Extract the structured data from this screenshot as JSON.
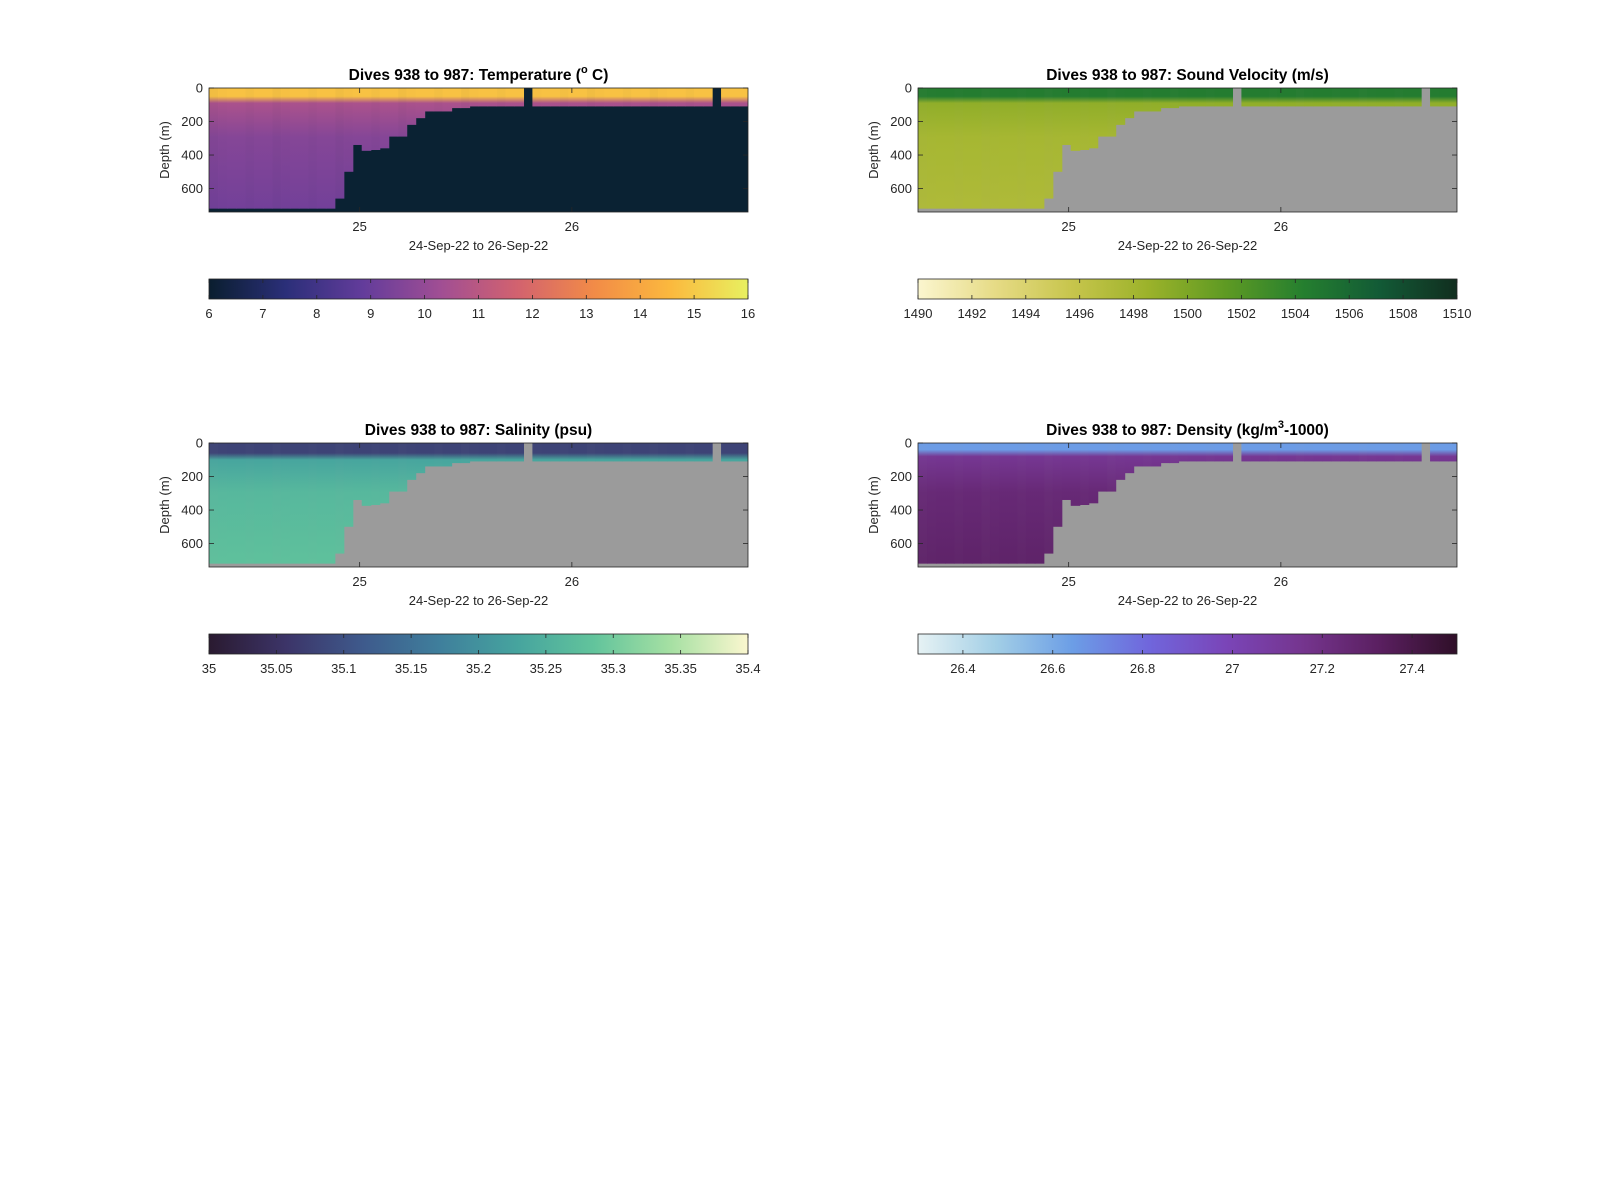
{
  "figure": {
    "background": "#ffffff"
  },
  "chart_data": [
    {
      "type": "heatmap",
      "title": "Dives 938 to 987: Temperature (",
      "title_sup": "o",
      "title_tail": " C)",
      "ylabel": "Depth (m)",
      "xlabel": "24-Sep-22 to 26-Sep-22",
      "xticks": [
        25,
        26
      ],
      "xlim": [
        24.29,
        26.83
      ],
      "yticks": [
        0,
        200,
        400,
        600
      ],
      "ylim": [
        0,
        740
      ],
      "y_reversed": true,
      "no_data_color": "#0a2233",
      "colormap": [
        "#0a1e2f",
        "#2b2f79",
        "#633c9b",
        "#a04e94",
        "#d2626f",
        "#f28b47",
        "#fbb93e",
        "#e8f060"
      ],
      "colorbar": {
        "ticks": [
          6,
          7,
          8,
          9,
          10,
          11,
          12,
          13,
          14,
          15,
          16
        ],
        "labels": [
          "6",
          "7",
          "8",
          "9",
          "10",
          "11",
          "12",
          "13",
          "14",
          "15",
          "16"
        ],
        "range": [
          6,
          16
        ]
      },
      "max_depth_profile": {
        "x": [
          24.29,
          24.85,
          24.9,
          24.94,
          24.98,
          25.03,
          25.08,
          25.13,
          25.18,
          25.23,
          25.3,
          25.4,
          25.5,
          25.75,
          26.0,
          26.3,
          26.6,
          26.83
        ],
        "depth": [
          720,
          660,
          500,
          340,
          375,
          370,
          360,
          290,
          220,
          180,
          140,
          120,
          110,
          110,
          110,
          110,
          110,
          110
        ]
      },
      "gaps": [
        {
          "x0": 25.75,
          "x1": 25.8,
          "depth": 0
        },
        {
          "x0": 26.62,
          "x1": 26.67,
          "depth": 0
        }
      ],
      "surface_value": 14.8,
      "deep_value": 9.2,
      "mixed_layer_depth": 50
    },
    {
      "type": "heatmap",
      "title": "Dives 938 to 987: Sound Velocity (m/s)",
      "ylabel": "Depth (m)",
      "xlabel": "24-Sep-22 to 26-Sep-22",
      "xticks": [
        25,
        26
      ],
      "xlim": [
        24.29,
        26.83
      ],
      "yticks": [
        0,
        200,
        400,
        600
      ],
      "ylim": [
        0,
        740
      ],
      "y_reversed": true,
      "no_data_color": "#9b9b9b",
      "colormap": [
        "#fbf6cf",
        "#e6db86",
        "#c7c54c",
        "#9bb22a",
        "#5e9a23",
        "#257f2f",
        "#125a36",
        "#112e1f"
      ],
      "colorbar": {
        "ticks": [
          1490,
          1492,
          1494,
          1496,
          1498,
          1500,
          1502,
          1504,
          1506,
          1508,
          1510
        ],
        "labels": [
          "1490",
          "1492",
          "1494",
          "1496",
          "1498",
          "1500",
          "1502",
          "1504",
          "1506",
          "1508",
          "1510"
        ],
        "range": [
          1490,
          1510
        ]
      },
      "max_depth_profile": {
        "x": [
          24.29,
          24.85,
          24.9,
          24.94,
          24.98,
          25.03,
          25.08,
          25.13,
          25.18,
          25.23,
          25.3,
          25.4,
          25.5,
          25.75,
          26.0,
          26.3,
          26.6,
          26.83
        ],
        "depth": [
          720,
          660,
          500,
          340,
          375,
          370,
          360,
          290,
          220,
          180,
          140,
          120,
          110,
          110,
          110,
          110,
          110,
          110
        ]
      },
      "gaps": [
        {
          "x0": 25.75,
          "x1": 25.8,
          "depth": 0
        },
        {
          "x0": 26.62,
          "x1": 26.67,
          "depth": 0
        }
      ],
      "surface_value": 1504.5,
      "deep_value": 1497.3,
      "mixed_layer_depth": 50
    },
    {
      "type": "heatmap",
      "title": "Dives 938 to 987: Salinity (psu)",
      "ylabel": "Depth (m)",
      "xlabel": "24-Sep-22 to 26-Sep-22",
      "xticks": [
        25,
        26
      ],
      "xlim": [
        24.29,
        26.83
      ],
      "yticks": [
        0,
        200,
        400,
        600
      ],
      "ylim": [
        0,
        740
      ],
      "y_reversed": true,
      "no_data_color": "#9b9b9b",
      "colormap": [
        "#2a1a30",
        "#3c3468",
        "#3e5a8c",
        "#3f7f9c",
        "#46a49e",
        "#62c49c",
        "#a6e0a3",
        "#fbf7cf"
      ],
      "colorbar": {
        "ticks": [
          35,
          35.05,
          35.1,
          35.15,
          35.2,
          35.25,
          35.3,
          35.35,
          35.4
        ],
        "labels": [
          "35",
          "35.05",
          "35.1",
          "35.15",
          "35.2",
          "35.25",
          "35.3",
          "35.35",
          "35.4"
        ],
        "range": [
          35,
          35.4
        ]
      },
      "max_depth_profile": {
        "x": [
          24.29,
          24.85,
          24.9,
          24.94,
          24.98,
          25.03,
          25.08,
          25.13,
          25.18,
          25.23,
          25.3,
          25.4,
          25.5,
          25.75,
          26.0,
          26.3,
          26.6,
          26.83
        ],
        "depth": [
          720,
          660,
          500,
          340,
          375,
          370,
          360,
          290,
          220,
          180,
          140,
          120,
          110,
          110,
          110,
          110,
          110,
          110
        ]
      },
      "gaps": [
        {
          "x0": 25.75,
          "x1": 25.8,
          "depth": 0
        },
        {
          "x0": 26.62,
          "x1": 26.67,
          "depth": 0
        }
      ],
      "surface_value": 35.08,
      "deep_value": 35.28,
      "mixed_layer_depth": 60
    },
    {
      "type": "heatmap",
      "title": "Dives 938 to 987: Density (kg/m",
      "title_sup": "3",
      "title_tail": "-1000)",
      "ylabel": "Depth (m)",
      "xlabel": "24-Sep-22 to 26-Sep-22",
      "xticks": [
        25,
        26
      ],
      "xlim": [
        24.29,
        26.83
      ],
      "yticks": [
        0,
        200,
        400,
        600
      ],
      "ylim": [
        0,
        740
      ],
      "y_reversed": true,
      "no_data_color": "#9b9b9b",
      "colormap": [
        "#e6f2f4",
        "#a3cfe6",
        "#6c9ee6",
        "#7066dc",
        "#7a45b8",
        "#75358e",
        "#5a1f60",
        "#2f0f28"
      ],
      "colorbar": {
        "ticks": [
          26.4,
          26.6,
          26.8,
          27,
          27.2,
          27.4
        ],
        "labels": [
          "26.4",
          "26.6",
          "26.8",
          "27",
          "27.2",
          "27.4"
        ],
        "range": [
          26.3,
          27.5
        ]
      },
      "max_depth_profile": {
        "x": [
          24.29,
          24.85,
          24.9,
          24.94,
          24.98,
          25.03,
          25.08,
          25.13,
          25.18,
          25.23,
          25.3,
          25.4,
          25.5,
          25.75,
          26.0,
          26.3,
          26.6,
          26.83
        ],
        "depth": [
          720,
          660,
          500,
          340,
          375,
          370,
          360,
          290,
          220,
          180,
          140,
          120,
          110,
          110,
          110,
          110,
          110,
          110
        ]
      },
      "gaps": [
        {
          "x0": 25.75,
          "x1": 25.8,
          "depth": 0
        },
        {
          "x0": 26.62,
          "x1": 26.67,
          "depth": 0
        }
      ],
      "surface_value": 26.65,
      "deep_value": 27.3,
      "mixed_layer_depth": 40
    }
  ]
}
